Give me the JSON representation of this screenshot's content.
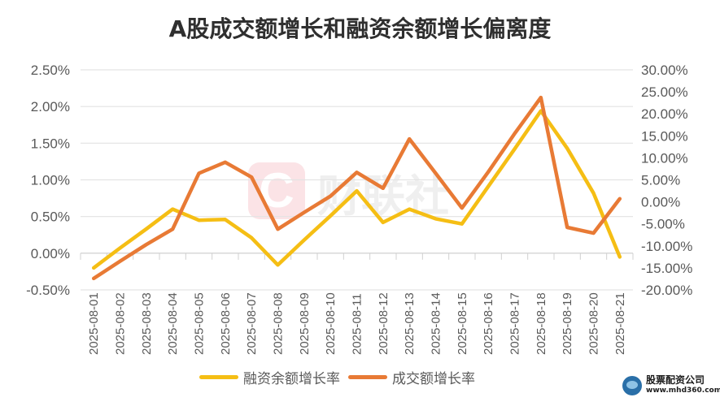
{
  "title": "A股成交额增长和融资余额增长偏离度",
  "watermark": {
    "center_text": "财联社",
    "corner_name": "股票配资公司",
    "corner_url": "www.mhd360.com"
  },
  "legend": [
    {
      "label": "融资余额增长率",
      "color": "#F5BE14"
    },
    {
      "label": "成交额增长率",
      "color": "#E87A35"
    }
  ],
  "chart_data": {
    "type": "line",
    "title": "A股成交额增长和融资余额增长偏离度",
    "xlabel": "",
    "ylabel_left": "",
    "ylabel_right": "",
    "categories": [
      "2025-08-01",
      "2025-08-02",
      "2025-08-03",
      "2025-08-04",
      "2025-08-05",
      "2025-08-06",
      "2025-08-07",
      "2025-08-08",
      "2025-08-09",
      "2025-08-10",
      "2025-08-11",
      "2025-08-12",
      "2025-08-13",
      "2025-08-14",
      "2025-08-15",
      "2025-08-16",
      "2025-08-17",
      "2025-08-18",
      "2025-08-19",
      "2025-08-20",
      "2025-08-21"
    ],
    "series": [
      {
        "name": "融资余额增长率",
        "axis": "left",
        "color": "#F5BE14",
        "values": [
          -0.2,
          0.07,
          0.33,
          0.6,
          0.45,
          0.46,
          0.21,
          -0.16,
          0.18,
          0.51,
          0.85,
          0.42,
          0.6,
          0.47,
          0.4,
          0.91,
          1.42,
          1.94,
          1.43,
          0.82,
          -0.05
        ]
      },
      {
        "name": "成交额增长率",
        "axis": "right",
        "color": "#E87A35",
        "values": [
          -17.4,
          -13.5,
          -9.7,
          -6.2,
          6.5,
          9.0,
          5.6,
          -6.2,
          -2.4,
          1.3,
          6.7,
          3.1,
          14.3,
          6.5,
          -1.4,
          6.8,
          15.5,
          23.7,
          -5.8,
          -7.1,
          0.7
        ]
      }
    ],
    "left_axis": {
      "ylim": [
        -0.5,
        2.5
      ],
      "ticks": [
        "2.50%",
        "2.00%",
        "1.50%",
        "1.00%",
        "0.50%",
        "0.00%",
        "-0.50%"
      ]
    },
    "right_axis": {
      "ylim": [
        -20,
        30
      ],
      "ticks": [
        "30.00%",
        "25.00%",
        "20.00%",
        "15.00%",
        "10.00%",
        "5.00%",
        "0.00%",
        "-5.00%",
        "-10.00%",
        "-15.00%",
        "-20.00%"
      ]
    },
    "grid": true,
    "legend_position": "bottom"
  }
}
